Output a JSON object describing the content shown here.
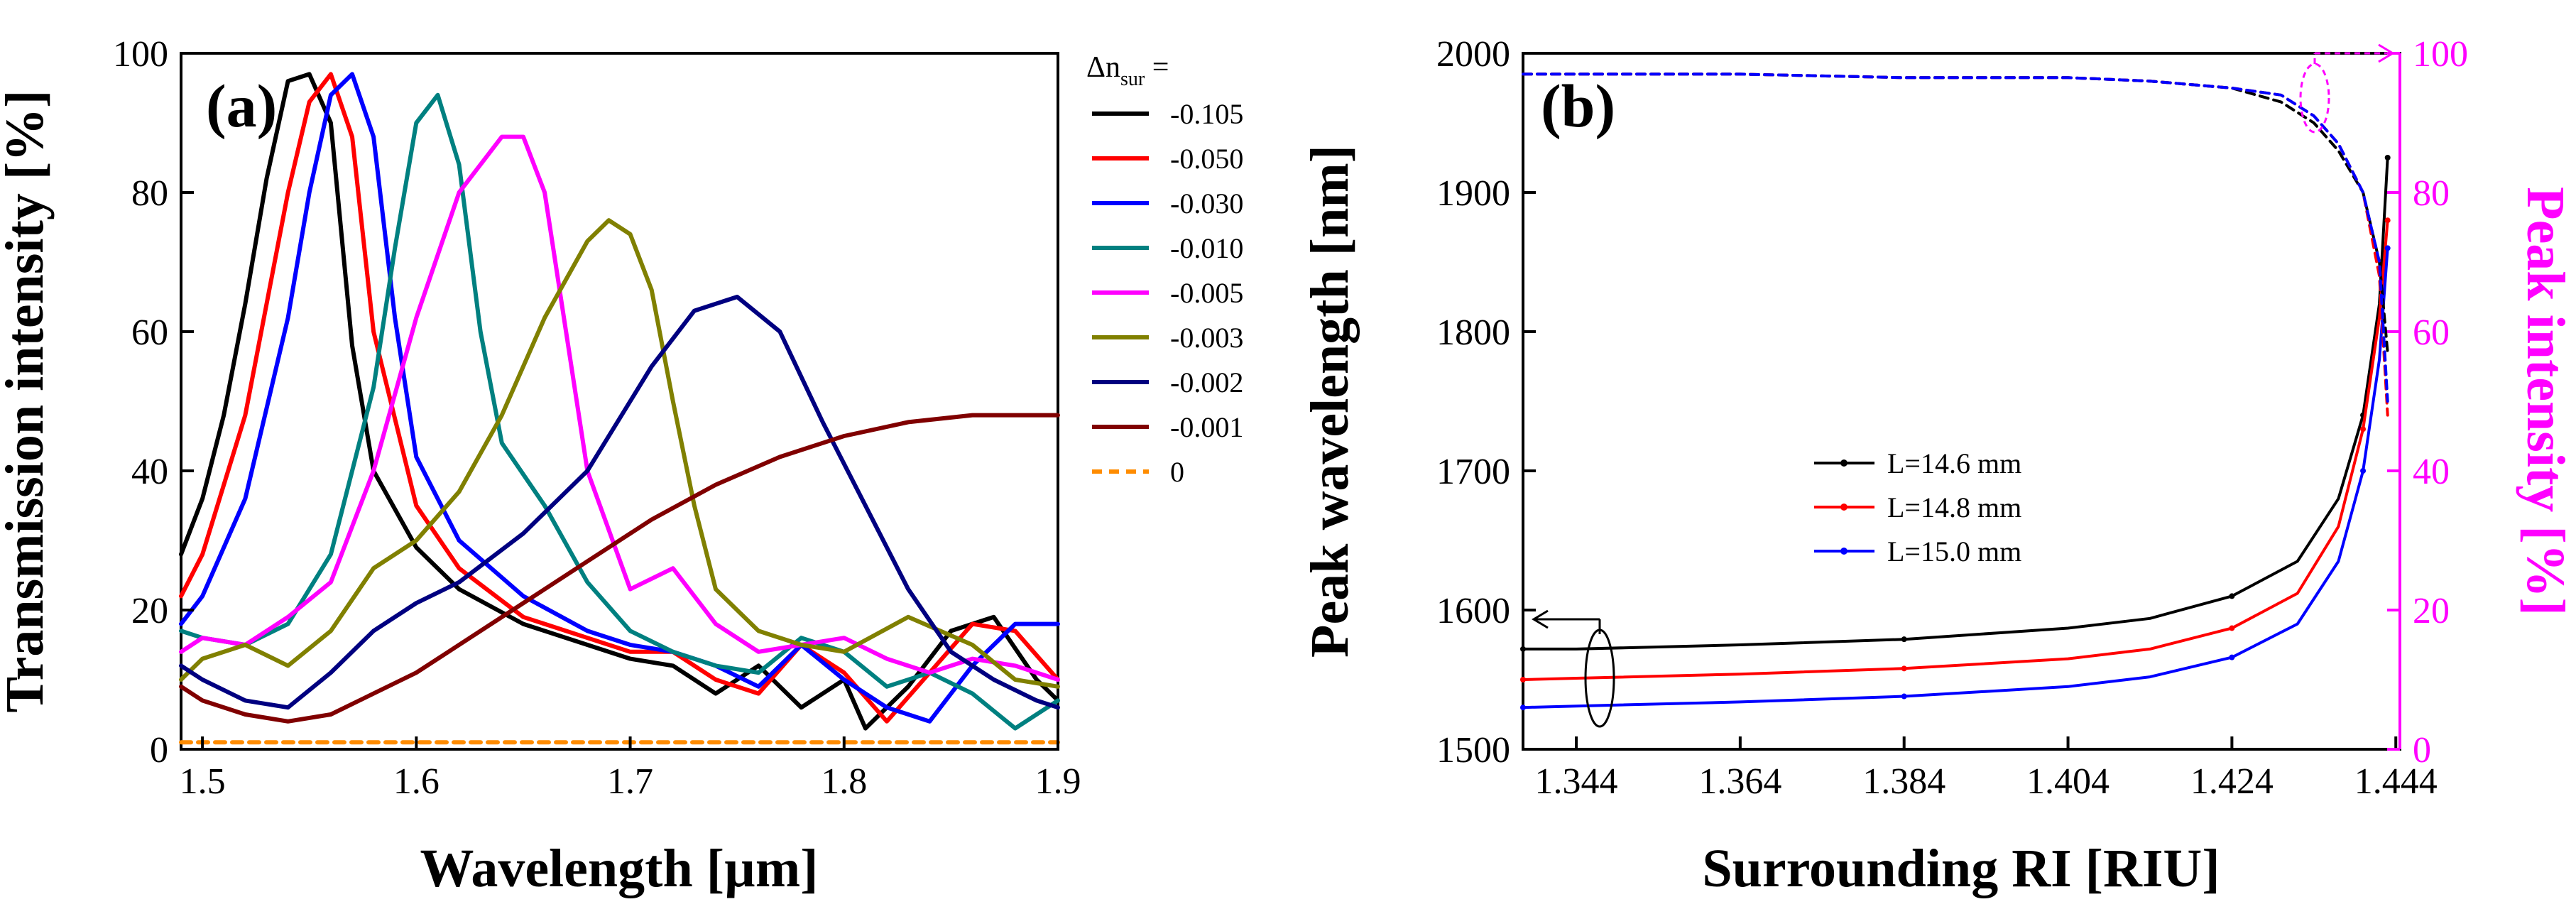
{
  "chart_data": [
    {
      "type": "line",
      "panel_label": "(a)",
      "xlabel": "Wavelength [µm]",
      "ylabel": "Transmission intensity [%]",
      "xlim": [
        1.49,
        1.9
      ],
      "ylim": [
        0,
        100
      ],
      "xticks": [
        1.5,
        1.6,
        1.7,
        1.8,
        1.9
      ],
      "xtick_labels": [
        "1.5",
        "1.6",
        "1.7",
        "1.8",
        "1.9"
      ],
      "yticks": [
        0,
        20,
        40,
        60,
        80,
        100
      ],
      "ytick_labels": [
        "0",
        "20",
        "40",
        "60",
        "80",
        "100"
      ],
      "legend_title_main": "Δn",
      "legend_title_sub": "sur",
      "legend_title_suffix": " =",
      "series": [
        {
          "name": "-0.105",
          "color": "#000000",
          "dash": false,
          "x": [
            1.49,
            1.5,
            1.51,
            1.52,
            1.53,
            1.54,
            1.55,
            1.56,
            1.57,
            1.58,
            1.6,
            1.62,
            1.65,
            1.68,
            1.7,
            1.72,
            1.74,
            1.76,
            1.78,
            1.8,
            1.81,
            1.83,
            1.85,
            1.87,
            1.89,
            1.9
          ],
          "y": [
            28,
            36,
            48,
            64,
            82,
            96,
            97,
            90,
            58,
            40,
            29,
            23,
            18,
            15,
            13,
            12,
            8,
            12,
            6,
            10,
            3,
            9,
            17,
            19,
            10,
            7
          ]
        },
        {
          "name": "-0.050",
          "color": "#ff0000",
          "dash": false,
          "x": [
            1.49,
            1.5,
            1.52,
            1.54,
            1.55,
            1.56,
            1.57,
            1.58,
            1.6,
            1.62,
            1.65,
            1.68,
            1.7,
            1.72,
            1.74,
            1.76,
            1.78,
            1.8,
            1.82,
            1.84,
            1.86,
            1.88,
            1.9
          ],
          "y": [
            22,
            28,
            48,
            80,
            93,
            97,
            88,
            60,
            35,
            26,
            19,
            16,
            14,
            14,
            10,
            8,
            15,
            11,
            4,
            11,
            18,
            17,
            10
          ]
        },
        {
          "name": "-0.030",
          "color": "#0000ff",
          "dash": false,
          "x": [
            1.49,
            1.5,
            1.52,
            1.54,
            1.55,
            1.56,
            1.57,
            1.58,
            1.59,
            1.6,
            1.62,
            1.65,
            1.68,
            1.7,
            1.72,
            1.74,
            1.76,
            1.78,
            1.8,
            1.82,
            1.84,
            1.86,
            1.88,
            1.9
          ],
          "y": [
            18,
            22,
            36,
            62,
            80,
            94,
            97,
            88,
            62,
            42,
            30,
            22,
            17,
            15,
            14,
            12,
            9,
            15,
            10,
            6,
            4,
            12,
            18,
            18
          ]
        },
        {
          "name": "-0.010",
          "color": "#008080",
          "dash": false,
          "x": [
            1.49,
            1.5,
            1.52,
            1.54,
            1.56,
            1.58,
            1.59,
            1.6,
            1.61,
            1.62,
            1.63,
            1.64,
            1.66,
            1.68,
            1.7,
            1.72,
            1.74,
            1.76,
            1.78,
            1.8,
            1.82,
            1.84,
            1.86,
            1.88,
            1.9
          ],
          "y": [
            17,
            16,
            15,
            18,
            28,
            52,
            72,
            90,
            94,
            84,
            60,
            44,
            35,
            24,
            17,
            14,
            12,
            11,
            16,
            14,
            9,
            11,
            8,
            3,
            7
          ]
        },
        {
          "name": "-0.005",
          "color": "#ff00ff",
          "dash": false,
          "x": [
            1.49,
            1.5,
            1.52,
            1.54,
            1.56,
            1.58,
            1.6,
            1.62,
            1.64,
            1.65,
            1.66,
            1.67,
            1.68,
            1.7,
            1.72,
            1.74,
            1.76,
            1.78,
            1.8,
            1.82,
            1.84,
            1.86,
            1.88,
            1.9
          ],
          "y": [
            14,
            16,
            15,
            19,
            24,
            40,
            62,
            80,
            88,
            88,
            80,
            60,
            40,
            23,
            26,
            18,
            14,
            15,
            16,
            13,
            11,
            13,
            12,
            10
          ]
        },
        {
          "name": "-0.003",
          "color": "#808000",
          "dash": false,
          "x": [
            1.49,
            1.5,
            1.52,
            1.54,
            1.56,
            1.58,
            1.6,
            1.62,
            1.64,
            1.66,
            1.68,
            1.69,
            1.7,
            1.71,
            1.72,
            1.73,
            1.74,
            1.76,
            1.78,
            1.8,
            1.83,
            1.86,
            1.88,
            1.9
          ],
          "y": [
            10,
            13,
            15,
            12,
            17,
            26,
            30,
            37,
            48,
            62,
            73,
            76,
            74,
            66,
            50,
            35,
            23,
            17,
            15,
            14,
            19,
            15,
            10,
            9
          ]
        },
        {
          "name": "-0.002",
          "color": "#000080",
          "dash": false,
          "x": [
            1.49,
            1.5,
            1.52,
            1.54,
            1.56,
            1.58,
            1.6,
            1.62,
            1.65,
            1.68,
            1.71,
            1.73,
            1.75,
            1.77,
            1.79,
            1.81,
            1.83,
            1.85,
            1.87,
            1.89,
            1.9
          ],
          "y": [
            12,
            10,
            7,
            6,
            11,
            17,
            21,
            24,
            31,
            40,
            55,
            63,
            65,
            60,
            47,
            35,
            23,
            14,
            10,
            7,
            6
          ]
        },
        {
          "name": "-0.001",
          "color": "#800000",
          "dash": false,
          "x": [
            1.49,
            1.5,
            1.52,
            1.54,
            1.56,
            1.58,
            1.6,
            1.62,
            1.65,
            1.68,
            1.71,
            1.74,
            1.77,
            1.8,
            1.83,
            1.86,
            1.89,
            1.9
          ],
          "y": [
            9,
            7,
            5,
            4,
            5,
            8,
            11,
            15,
            21,
            27,
            33,
            38,
            42,
            45,
            47,
            48,
            48,
            48
          ]
        },
        {
          "name": "0",
          "color": "#ff8c00",
          "dash": true,
          "x": [
            1.49,
            1.9
          ],
          "y": [
            1,
            1
          ]
        }
      ]
    },
    {
      "type": "line",
      "panel_label": "(b)",
      "xlabel": "Surrounding RI [RIU]",
      "ylabel": "Peak wavelength [nm]",
      "ylabel_right": "Peak intensity [%]",
      "xlim": [
        1.3375,
        1.4445
      ],
      "ylim": [
        1500,
        2000
      ],
      "ylim_right": [
        0,
        100
      ],
      "xticks": [
        1.344,
        1.364,
        1.384,
        1.404,
        1.424,
        1.444
      ],
      "xtick_labels": [
        "1.344",
        "1.364",
        "1.384",
        "1.404",
        "1.424",
        "1.444"
      ],
      "yticks": [
        1500,
        1600,
        1700,
        1800,
        1900,
        2000
      ],
      "ytick_labels": [
        "1500",
        "1600",
        "1700",
        "1800",
        "1900",
        "2000"
      ],
      "yticks_right": [
        0,
        20,
        40,
        60,
        80,
        100
      ],
      "ytick_labels_right": [
        "0",
        "20",
        "40",
        "60",
        "80",
        "100"
      ],
      "series": [
        {
          "name": "L=14.6 mm",
          "color": "#000000",
          "axis": "left",
          "x": [
            1.3375,
            1.344,
            1.364,
            1.384,
            1.404,
            1.414,
            1.424,
            1.432,
            1.437,
            1.44,
            1.442,
            1.443
          ],
          "y": [
            1572,
            1572,
            1575,
            1579,
            1587,
            1594,
            1610,
            1635,
            1680,
            1740,
            1820,
            1925
          ]
        },
        {
          "name": "L=14.8 mm",
          "color": "#ff0000",
          "axis": "left",
          "x": [
            1.3375,
            1.344,
            1.364,
            1.384,
            1.404,
            1.414,
            1.424,
            1.432,
            1.437,
            1.44,
            1.442,
            1.443
          ],
          "y": [
            1550,
            1551,
            1554,
            1558,
            1565,
            1572,
            1587,
            1612,
            1660,
            1730,
            1810,
            1880
          ]
        },
        {
          "name": "L=15.0 mm",
          "color": "#0000ff",
          "axis": "left",
          "x": [
            1.3375,
            1.344,
            1.364,
            1.384,
            1.404,
            1.414,
            1.424,
            1.432,
            1.437,
            1.44,
            1.442,
            1.443
          ],
          "y": [
            1530,
            1531,
            1534,
            1538,
            1545,
            1552,
            1566,
            1590,
            1635,
            1700,
            1780,
            1860
          ]
        },
        {
          "name": "peak-intensity-14.6",
          "color": "#000000",
          "axis": "right",
          "dash": true,
          "x": [
            1.3375,
            1.364,
            1.384,
            1.404,
            1.414,
            1.424,
            1.43,
            1.434,
            1.437,
            1.44,
            1.442,
            1.443
          ],
          "y": [
            97,
            97,
            96.5,
            96.5,
            96,
            95,
            93,
            90,
            86,
            80,
            70,
            57
          ]
        },
        {
          "name": "peak-intensity-14.8",
          "color": "#ff0000",
          "axis": "right",
          "dash": true,
          "x": [
            1.3375,
            1.364,
            1.384,
            1.404,
            1.414,
            1.424,
            1.43,
            1.434,
            1.437,
            1.44,
            1.442,
            1.443
          ],
          "y": [
            97,
            97,
            96.5,
            96.5,
            96,
            95,
            94,
            91,
            87,
            80,
            68,
            48
          ]
        },
        {
          "name": "peak-intensity-15.0",
          "color": "#0000ff",
          "axis": "right",
          "dash": true,
          "x": [
            1.3375,
            1.364,
            1.384,
            1.404,
            1.414,
            1.424,
            1.43,
            1.434,
            1.437,
            1.44,
            1.442,
            1.443
          ],
          "y": [
            97,
            97,
            96.5,
            96.5,
            96,
            95,
            94,
            91,
            87,
            80,
            70,
            50
          ]
        }
      ]
    }
  ]
}
